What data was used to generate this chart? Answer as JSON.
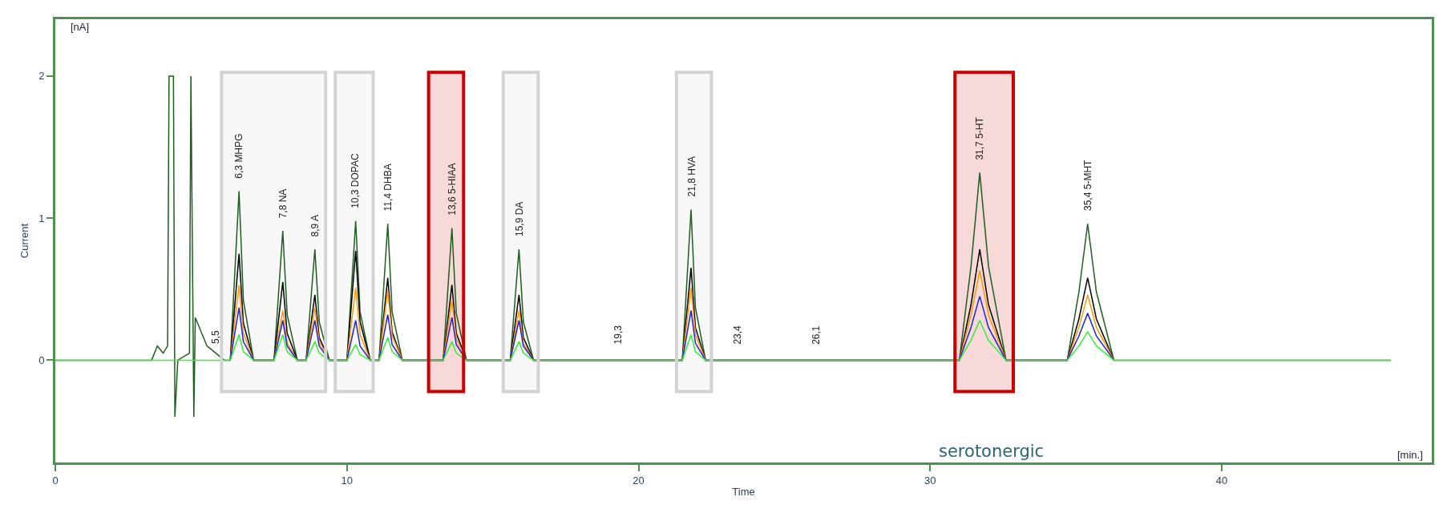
{
  "chart_data": {
    "type": "line",
    "xlabel": "Time",
    "ylabel": "Current",
    "x": [
      0,
      3.3,
      3.5,
      3.7,
      3.85,
      3.9,
      4.05,
      4.1,
      4.2,
      4.6,
      4.65,
      4.75,
      4.8,
      5.2,
      5.8,
      6.0,
      6.3,
      6.45,
      6.8,
      7.5,
      7.8,
      7.95,
      8.3,
      8.6,
      8.9,
      9.05,
      9.4,
      10.0,
      10.3,
      10.45,
      10.8,
      11.1,
      11.4,
      11.55,
      11.9,
      13.3,
      13.6,
      13.75,
      14.1,
      15.6,
      15.9,
      16.05,
      16.4,
      21.5,
      21.8,
      21.95,
      22.3,
      31.0,
      31.4,
      31.7,
      32.0,
      32.6,
      34.7,
      35.1,
      35.4,
      35.7,
      36.3,
      45.8
    ],
    "series": [
      {
        "color": "#1e5e1e",
        "values": [
          0,
          0,
          0.1,
          0.05,
          0.1,
          2,
          2,
          -0.4,
          0,
          0.05,
          2,
          -0.4,
          0.3,
          0.1,
          0,
          0,
          1.19,
          0.42,
          0,
          0,
          0.91,
          0.32,
          0,
          0,
          0.78,
          0.27,
          0,
          0,
          0.98,
          0.34,
          0,
          0,
          0.96,
          0.34,
          0,
          0,
          0.93,
          0.33,
          0,
          0,
          0.78,
          0.27,
          0,
          0,
          1.06,
          0.37,
          0,
          0,
          0.66,
          1.32,
          0.66,
          0,
          0,
          0.48,
          0.96,
          0.48,
          0,
          0
        ]
      },
      {
        "color": "#000000",
        "values": [
          null,
          null,
          null,
          null,
          null,
          null,
          null,
          null,
          null,
          null,
          null,
          null,
          null,
          null,
          null,
          0,
          0.75,
          0.26,
          0,
          0,
          0.55,
          0.19,
          0,
          0,
          0.46,
          0.16,
          0,
          0,
          0.77,
          0.27,
          0,
          0,
          0.58,
          0.2,
          0,
          0,
          0.53,
          0.19,
          0,
          0,
          0.46,
          0.16,
          0,
          0,
          0.65,
          0.23,
          0,
          0,
          0.39,
          0.78,
          0.39,
          0,
          0,
          0.29,
          0.58,
          0.29,
          0,
          null
        ]
      },
      {
        "color": "#ff9900",
        "values": [
          null,
          null,
          null,
          null,
          null,
          null,
          null,
          null,
          null,
          null,
          null,
          null,
          null,
          null,
          null,
          0,
          0.53,
          0.19,
          0,
          0,
          0.35,
          0.12,
          0,
          0,
          0.37,
          0.13,
          0,
          0,
          0.51,
          0.18,
          0,
          0,
          0.49,
          0.17,
          0,
          0,
          0.42,
          0.15,
          0,
          0,
          0.35,
          0.12,
          0,
          0,
          0.51,
          0.18,
          0,
          0,
          0.32,
          0.63,
          0.32,
          0,
          0,
          0.23,
          0.46,
          0.23,
          0,
          null
        ]
      },
      {
        "color": "#2020e0",
        "values": [
          null,
          null,
          null,
          null,
          null,
          null,
          null,
          null,
          null,
          null,
          null,
          null,
          null,
          null,
          null,
          0,
          0.37,
          0.13,
          0,
          0,
          0.28,
          0.1,
          0,
          0,
          0.28,
          0.1,
          0,
          0,
          0.28,
          0.1,
          0,
          0,
          0.32,
          0.11,
          0,
          0,
          0.3,
          0.11,
          0,
          0,
          0.28,
          0.1,
          0,
          0,
          0.35,
          0.12,
          0,
          0,
          0.23,
          0.45,
          0.23,
          0,
          0,
          0.17,
          0.33,
          0.17,
          0,
          null
        ]
      },
      {
        "color": "#33ee33",
        "values": [
          0,
          0,
          0,
          0,
          0,
          0,
          0,
          0,
          0,
          0,
          0,
          0,
          0,
          0,
          0,
          0,
          0.18,
          0.06,
          0,
          0,
          0.18,
          0.06,
          0,
          0,
          0.13,
          0.05,
          0,
          0,
          0.11,
          0.04,
          0,
          0,
          0.16,
          0.06,
          0,
          0,
          0.13,
          0.05,
          0,
          0,
          0.13,
          0.05,
          0,
          0,
          0.18,
          0.06,
          0,
          0,
          0.14,
          0.28,
          0.14,
          0,
          0,
          0.1,
          0.2,
          0.1,
          0,
          0
        ]
      }
    ],
    "xlim": [
      0,
      47.2
    ],
    "ylim": [
      -0.72,
      2.4
    ],
    "xticks": [
      0,
      10,
      20,
      30,
      40
    ],
    "yticks": [
      0,
      1,
      2
    ],
    "grid": false,
    "marker": "none",
    "line_style": "solid",
    "bands": [
      {
        "axis": "x",
        "from": 5.7,
        "to": 9.27,
        "label": null,
        "color": "#d3d3d3"
      },
      {
        "axis": "x",
        "from": 9.6,
        "to": 10.9,
        "label": null,
        "color": "#d3d3d3"
      },
      {
        "axis": "x",
        "from": 12.8,
        "to": 14.0,
        "label": null,
        "color": "#cc0000"
      },
      {
        "axis": "x",
        "from": 15.36,
        "to": 16.56,
        "label": null,
        "color": "#d3d3d3"
      },
      {
        "axis": "x",
        "from": 21.3,
        "to": 22.5,
        "label": null,
        "color": "#d3d3d3"
      },
      {
        "axis": "x",
        "from": 30.85,
        "to": 32.85,
        "label": null,
        "color": "#cc0000"
      }
    ],
    "annotations": [
      {
        "text": "6,3 MHPG",
        "x": 6.3,
        "y": 1.19
      },
      {
        "text": "7,8 NA",
        "x": 7.8,
        "y": 0.91
      },
      {
        "text": "8,9 A",
        "x": 8.9,
        "y": 0.78
      },
      {
        "text": "10,3 DOPAC",
        "x": 10.3,
        "y": 0.98
      },
      {
        "text": "11,4 DHBA",
        "x": 11.4,
        "y": 0.96
      },
      {
        "text": "13,6 5-HIAA",
        "x": 13.6,
        "y": 0.93
      },
      {
        "text": "15,9 DA",
        "x": 15.9,
        "y": 0.78
      },
      {
        "text": "21,8 HVA",
        "x": 21.8,
        "y": 1.06
      },
      {
        "text": "31,7 5-HT",
        "x": 31.7,
        "y": 1.32
      },
      {
        "text": "35,4 5-MHT",
        "x": 35.4,
        "y": 0.96
      },
      {
        "text": "5,5",
        "x": 5.5,
        "y": 0
      },
      {
        "text": "19,3",
        "x": 19.3,
        "y": 0
      },
      {
        "text": "23,4",
        "x": 23.4,
        "y": 0
      },
      {
        "text": "26,1",
        "x": 26.1,
        "y": 0
      },
      "[nA]",
      "[min.]",
      "serotonergic"
    ]
  }
}
